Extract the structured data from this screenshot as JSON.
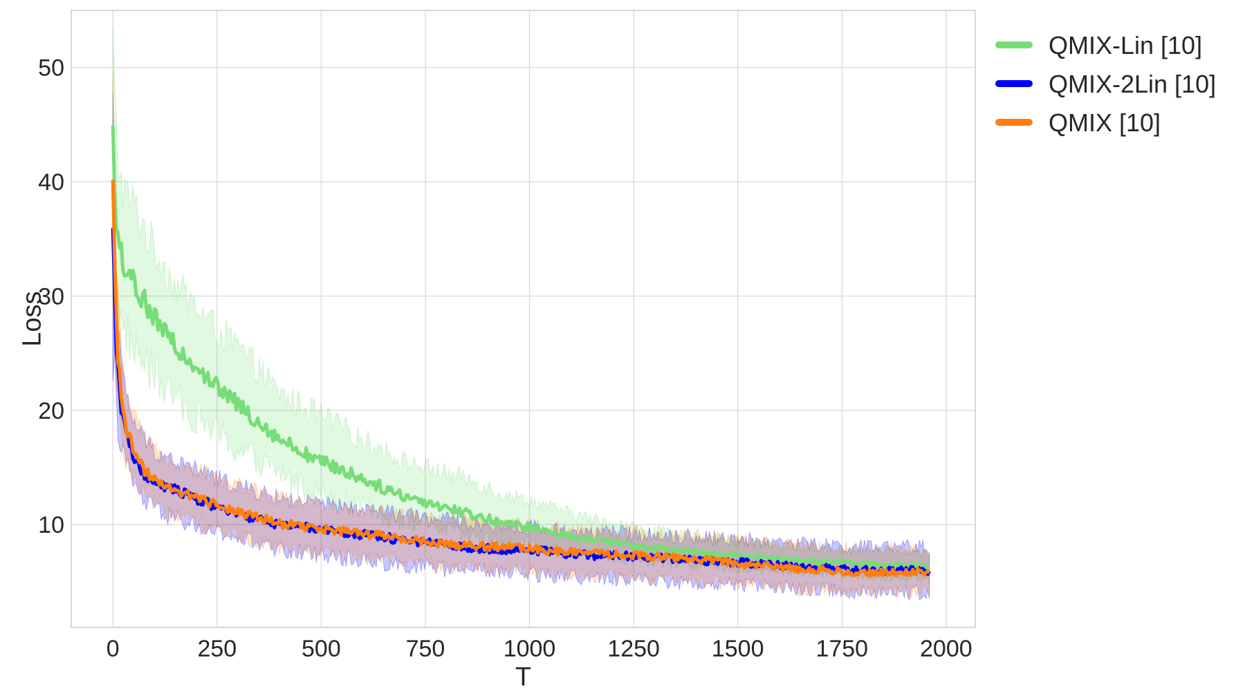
{
  "chart_data": {
    "type": "line",
    "title": "",
    "xlabel": "T",
    "ylabel": "Loss",
    "xlim": [
      -100,
      2070
    ],
    "ylim": [
      1,
      55
    ],
    "xticks": [
      0,
      250,
      500,
      750,
      1000,
      1250,
      1500,
      1750,
      2000
    ],
    "yticks": [
      10,
      20,
      30,
      40,
      50
    ],
    "xtick_labels": [
      "0",
      "250",
      "500",
      "750",
      "1000",
      "1250",
      "1500",
      "1750",
      "2000"
    ],
    "ytick_labels": [
      "10",
      "20",
      "30",
      "40",
      "50"
    ],
    "grid": true,
    "legend_position": "outside-top-right",
    "x": [
      0,
      5,
      10,
      20,
      30,
      50,
      75,
      100,
      150,
      200,
      250,
      300,
      350,
      400,
      450,
      500,
      550,
      600,
      650,
      700,
      750,
      800,
      850,
      900,
      950,
      1000,
      1050,
      1100,
      1150,
      1200,
      1250,
      1300,
      1350,
      1400,
      1450,
      1500,
      1550,
      1600,
      1650,
      1700,
      1750,
      1800,
      1850,
      1900,
      1960
    ],
    "series": [
      {
        "name": "QMIX-Lin [10]",
        "color": "#77dd77",
        "values": [
          44,
          38,
          35,
          33.5,
          32.5,
          31,
          29.5,
          28,
          25.5,
          24,
          22,
          20.5,
          19,
          17.5,
          16.5,
          15.5,
          14.8,
          14,
          13.2,
          12.5,
          12,
          11.5,
          11,
          10.5,
          10,
          9.8,
          9.3,
          9,
          8.7,
          8.5,
          8.2,
          8,
          7.8,
          7.6,
          7.4,
          7.3,
          7.2,
          7,
          6.9,
          6.8,
          6.7,
          6.6,
          6.5,
          6.4,
          6.3
        ],
        "band_low": [
          32,
          30,
          29,
          27.5,
          27,
          25.5,
          24,
          23,
          21,
          19.5,
          18,
          16.5,
          15.5,
          14.5,
          13.5,
          12.8,
          12,
          11.5,
          10.8,
          10.3,
          10,
          9.5,
          9,
          8.7,
          8.3,
          8.2,
          7.8,
          7.5,
          7.3,
          7.1,
          6.9,
          6.7,
          6.5,
          6.4,
          6.2,
          6.1,
          6,
          5.9,
          5.8,
          5.7,
          5.6,
          5.5,
          5.4,
          5.3,
          5.2
        ],
        "band_high": [
          52,
          46,
          43,
          40,
          39,
          38,
          36,
          34,
          31,
          29,
          27,
          25.5,
          23.5,
          21.5,
          20.5,
          19.5,
          18.5,
          17.5,
          16.5,
          15.5,
          15,
          14.5,
          14,
          13.3,
          12.5,
          12.2,
          11.5,
          11,
          10.5,
          10.2,
          9.8,
          9.5,
          9.2,
          9,
          8.8,
          8.6,
          8.4,
          8.2,
          8.1,
          8,
          7.9,
          7.8,
          7.7,
          7.6,
          7.5
        ]
      },
      {
        "name": "QMIX-2Lin [10]",
        "color": "#0000ff",
        "values": [
          36,
          29,
          24,
          20,
          18,
          16,
          14.5,
          13.8,
          13,
          12.3,
          11.5,
          11,
          10.4,
          10,
          9.8,
          9.6,
          9.3,
          9.1,
          8.9,
          8.6,
          8.4,
          8.2,
          8,
          7.9,
          7.8,
          7.8,
          7.6,
          7.4,
          7.3,
          7.3,
          7.2,
          7.1,
          7,
          6.9,
          6.8,
          6.7,
          6.6,
          6.5,
          6.3,
          6.2,
          6.1,
          6,
          6,
          6,
          6
        ],
        "band_low": [
          26,
          22,
          19.5,
          17,
          15.5,
          13.5,
          12,
          11.3,
          10.5,
          9.8,
          9.2,
          8.8,
          8.3,
          7.8,
          7.6,
          7.4,
          7.1,
          6.9,
          6.7,
          6.5,
          6.3,
          6.1,
          6,
          5.9,
          5.8,
          5.7,
          5.6,
          5.4,
          5.3,
          5.3,
          5.2,
          5.1,
          5,
          4.9,
          4.8,
          4.7,
          4.6,
          4.5,
          4.4,
          4.3,
          4.2,
          4.1,
          4.1,
          4.1,
          4.1
        ],
        "band_high": [
          46,
          36,
          30,
          24,
          21.5,
          19,
          17.5,
          16.5,
          15.5,
          14.8,
          14,
          13.4,
          12.8,
          12.3,
          12,
          11.8,
          11.5,
          11.3,
          11.1,
          10.8,
          10.6,
          10.4,
          10.2,
          10,
          9.8,
          9.8,
          9.6,
          9.4,
          9.3,
          9.3,
          9.2,
          9.1,
          9,
          8.9,
          8.8,
          8.7,
          8.6,
          8.5,
          8.3,
          8.2,
          8.1,
          8,
          8,
          8,
          8
        ]
      },
      {
        "name": "QMIX [10]",
        "color": "#ff7f0e",
        "values": [
          41,
          31,
          26,
          21,
          18.5,
          16.5,
          14.8,
          14,
          13,
          12.4,
          11.7,
          11.2,
          10.6,
          10.1,
          9.9,
          9.6,
          9.4,
          9.2,
          9,
          8.7,
          8.5,
          8.3,
          8.2,
          8.1,
          8,
          7.9,
          7.7,
          7.6,
          7.5,
          7.4,
          7.3,
          7.2,
          7.1,
          7,
          6.8,
          6.6,
          6.4,
          6.3,
          6.1,
          6,
          5.9,
          5.8,
          5.8,
          5.8,
          5.9
        ],
        "band_low": [
          32,
          24,
          21,
          18,
          16,
          14,
          12.5,
          11.8,
          10.8,
          10.2,
          9.6,
          9.1,
          8.6,
          8.1,
          7.9,
          7.6,
          7.4,
          7.2,
          7,
          6.8,
          6.6,
          6.4,
          6.3,
          6.2,
          6.1,
          6,
          5.8,
          5.7,
          5.6,
          5.5,
          5.4,
          5.3,
          5.2,
          5.1,
          5,
          4.9,
          4.7,
          4.6,
          4.4,
          4.3,
          4.2,
          4.1,
          4.1,
          4.1,
          4.2
        ],
        "band_high": [
          48,
          38,
          31,
          25,
          21.5,
          19.5,
          17.5,
          16.5,
          15.5,
          14.8,
          14,
          13.5,
          12.8,
          12.3,
          12,
          11.7,
          11.5,
          11.3,
          11.1,
          10.8,
          10.6,
          10.4,
          10.3,
          10.2,
          10,
          9.9,
          9.7,
          9.6,
          9.5,
          9.4,
          9.3,
          9.2,
          9.1,
          9,
          8.8,
          8.6,
          8.4,
          8.3,
          8.1,
          8,
          7.9,
          7.8,
          7.8,
          7.8,
          7.9
        ]
      }
    ]
  }
}
